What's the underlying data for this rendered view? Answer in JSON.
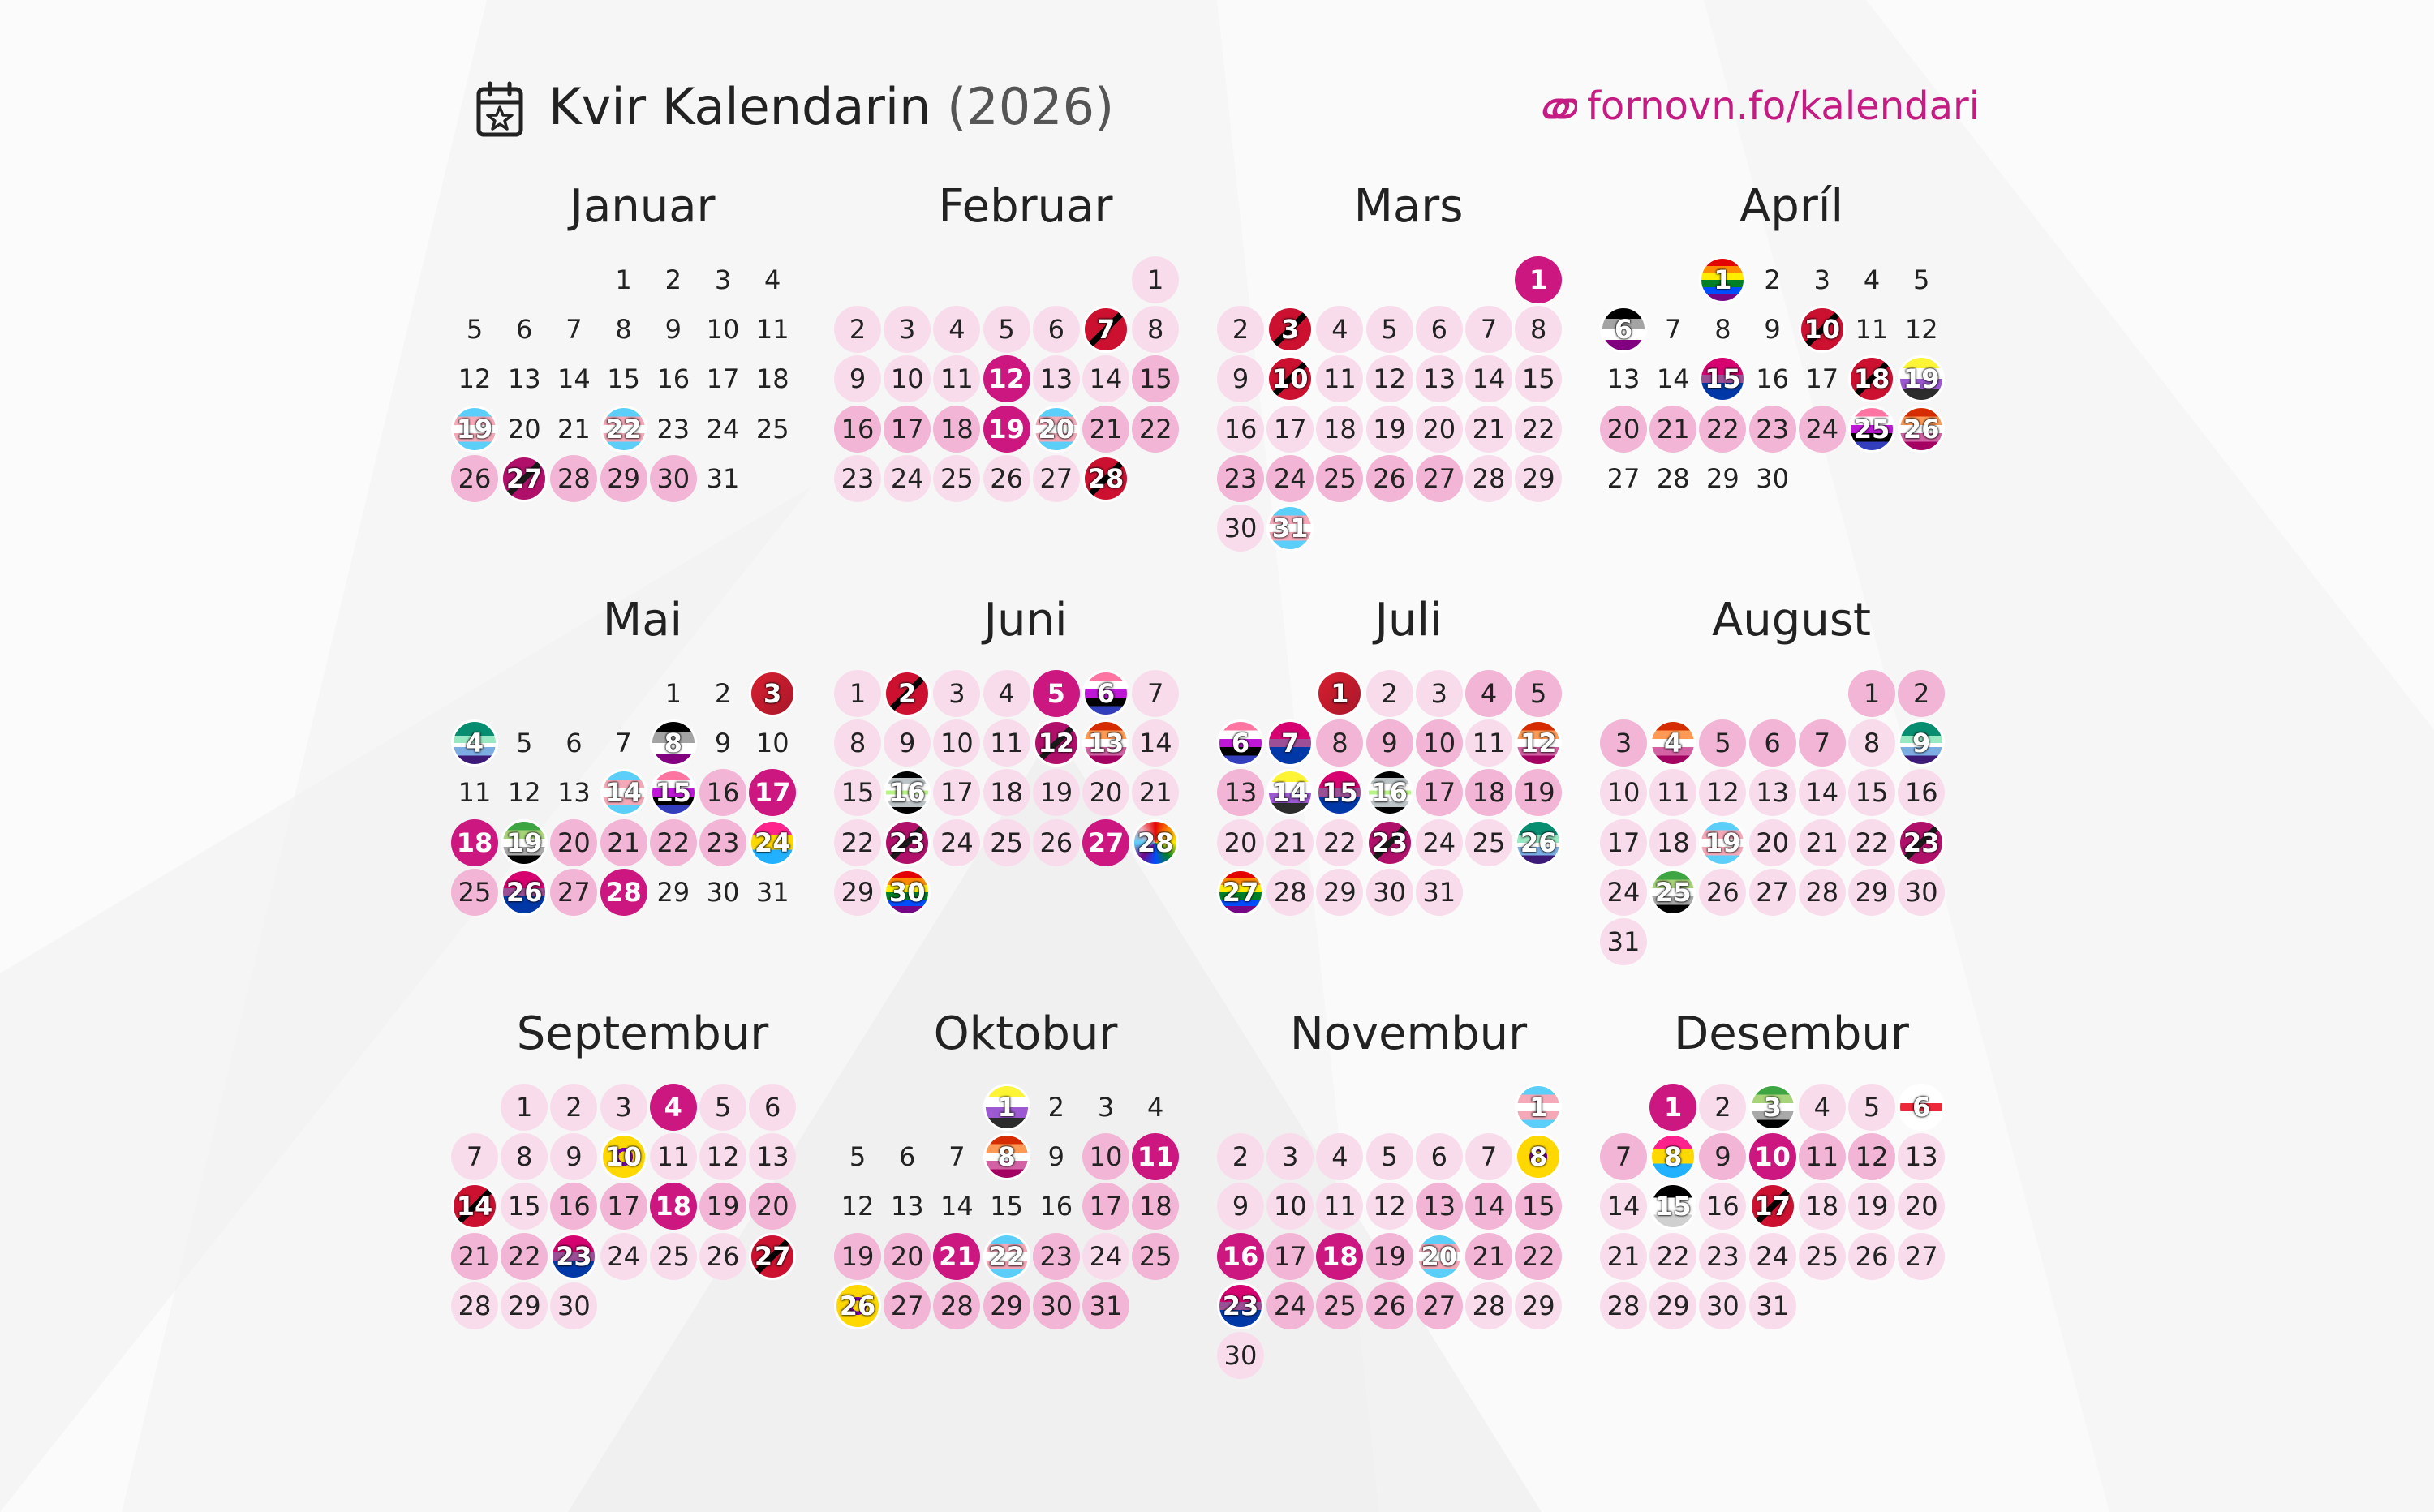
{
  "header": {
    "title": "Kvir Kalendarin",
    "year": "(2026)",
    "site": "fornovn.fo/kalendari",
    "icon": "calendar-star-icon",
    "link_icon": "link-icon"
  },
  "colors": {
    "accent": "#c41c82",
    "light": "#f9dcec",
    "medium": "#f2b5d6",
    "strong": "#cc1680"
  },
  "flags": {
    "rainbow": "linear-gradient(#e40303 0 17%,#ff8c00 17% 33%,#ffed00 33% 50%,#008026 50% 67%,#004dff 67% 83%,#750787 83%)",
    "trans": "linear-gradient(#5bcefa 0 20%,#f5a9b8 20% 40%,#ffffff 40% 60%,#f5a9b8 60% 80%,#5bcefa 80%)",
    "bi": "linear-gradient(#d60270 0 40%,#9b4f96 40% 60%,#0038a8 60%)",
    "pan": "linear-gradient(#ff218c 0 33%,#ffd800 33% 66%,#21b1ff 66%)",
    "ace": "linear-gradient(#000 0 25%,#a3a3a3 25% 50%,#fff 50% 75%,#800080 75%)",
    "aro": "linear-gradient(#3da542 0 20%,#a7d379 20% 40%,#fff 40% 60%,#a9a9a9 60% 80%,#000 80%)",
    "nonbinary": "linear-gradient(#fcf434 0 25%,#fff 25% 50%,#9c59d1 50% 75%,#2c2c2c 75%)",
    "lesbian": "linear-gradient(#d52d00 0 20%,#ff9a56 20% 40%,#fff 40% 60%,#d362a4 60% 80%,#a30262 80%)",
    "intersex": "radial-gradient(circle,#ffd800 0 18%,#7902aa 18% 30%,#ffd800 30%)",
    "genderfluid": "linear-gradient(#ff75a2 0 20%,#fff 20% 40%,#be18d6 40% 60%,#000 60% 80%,#333ebd 80%)",
    "demi": "linear-gradient(#000 0 30%,#fff 30% 70%,#d0d0d0 70%)",
    "agender": "linear-gradient(#000 0 15%,#bcc4c7 15% 30%,#fff 30% 45%,#b8f483 45% 55%,#fff 55% 70%,#bcc4c7 70% 85%,#000 85%)",
    "aids": "linear-gradient(135deg,#cc1130 0 45%,#000 45% 55%,#cc1130 55%)",
    "dark": "linear-gradient(135deg,#b0106a 0 45%,#1a1a1a 45% 55%,#b0106a 55%)",
    "red": "linear-gradient(135deg,#d81e2f,#a8182a)",
    "gay": "linear-gradient(#078d70 0 33%,#98e8c1 33% 50%,#fff 50% 60%,#7bade2 60% 80%,#3d1a78 80%)",
    "gray": "linear-gradient(#cfcfcf,#9a9a9a)",
    "faroe": "linear-gradient(#fff 0 40%,#ed2939 40% 60%,#fff 60%)",
    "pride_progress": "conic-gradient(#e40303,#ff8c00,#ffed00,#008026,#004dff,#750787,#5bcefa,#f5a9b8,#e40303)"
  },
  "months": [
    {
      "name": "Januar",
      "offset": 3,
      "days": 31,
      "styles": {
        "19": "trans",
        "22": "trans",
        "26": "l2",
        "27": "dark",
        "28": "l2",
        "29": "l2",
        "30": "l2"
      }
    },
    {
      "name": "Februar",
      "offset": 6,
      "days": 28,
      "styles": {
        "1": "l1",
        "2": "l1",
        "3": "l1",
        "4": "l1",
        "5": "l1",
        "6": "l1",
        "7": "aids",
        "8": "l1",
        "9": "l1",
        "10": "l1",
        "11": "l1",
        "12": "l3",
        "13": "l1",
        "14": "l1",
        "15": "l2",
        "16": "l2",
        "17": "l2",
        "18": "l2",
        "19": "l3",
        "20": "trans",
        "21": "l2",
        "22": "l2",
        "23": "l1",
        "24": "l1",
        "25": "l1",
        "26": "l1",
        "27": "l1",
        "28": "aids"
      }
    },
    {
      "name": "Mars",
      "offset": 6,
      "days": 31,
      "styles": {
        "1": "l3",
        "2": "l1",
        "3": "aids",
        "4": "l1",
        "5": "l1",
        "6": "l1",
        "7": "l1",
        "8": "l1",
        "9": "l1",
        "10": "aids",
        "11": "l1",
        "12": "l1",
        "13": "l1",
        "14": "l1",
        "15": "l1",
        "16": "l1",
        "17": "l1",
        "18": "l1",
        "19": "l1",
        "20": "l1",
        "21": "l1",
        "22": "l1",
        "23": "l2",
        "24": "l2",
        "25": "l2",
        "26": "l2",
        "27": "l2",
        "28": "l1",
        "29": "l1",
        "30": "l1",
        "31": "trans"
      }
    },
    {
      "name": "Apríl",
      "offset": 2,
      "days": 30,
      "styles": {
        "1": "rainbow",
        "6": "ace",
        "10": "aids",
        "15": "bi",
        "18": "aids",
        "19": "nonbinary",
        "20": "l2",
        "21": "l2",
        "22": "l2",
        "23": "l2",
        "24": "l2",
        "25": "genderfluid",
        "26": "lesbian"
      }
    },
    {
      "name": "Mai",
      "offset": 4,
      "days": 31,
      "styles": {
        "3": "red",
        "4": "gay",
        "8": "ace",
        "14": "trans",
        "15": "genderfluid",
        "16": "l2",
        "17": "l3",
        "18": "l3",
        "19": "aro",
        "20": "l2",
        "21": "l2",
        "22": "l2",
        "23": "l2",
        "24": "pan",
        "25": "l2",
        "26": "bi",
        "27": "l2",
        "28": "l3"
      }
    },
    {
      "name": "Juni",
      "offset": 0,
      "days": 30,
      "styles": {
        "1": "l1",
        "2": "aids",
        "3": "l1",
        "4": "l1",
        "5": "l3",
        "6": "genderfluid",
        "7": "l1",
        "8": "l1",
        "9": "l1",
        "10": "l1",
        "11": "l1",
        "12": "dark",
        "13": "lesbian",
        "14": "l1",
        "15": "l1",
        "16": "agender",
        "17": "l1",
        "18": "l1",
        "19": "l1",
        "20": "l1",
        "21": "l1",
        "22": "l1",
        "23": "dark",
        "24": "l1",
        "25": "l1",
        "26": "l1",
        "27": "l3",
        "28": "pride_progress",
        "29": "l1",
        "30": "rainbow"
      }
    },
    {
      "name": "Juli",
      "offset": 2,
      "days": 31,
      "styles": {
        "1": "red",
        "2": "l1",
        "3": "l1",
        "4": "l2",
        "5": "l2",
        "6": "genderfluid",
        "7": "bi",
        "8": "l2",
        "9": "l2",
        "10": "l2",
        "11": "l1",
        "12": "lesbian",
        "13": "l2",
        "14": "nonbinary",
        "15": "bi",
        "16": "agender",
        "17": "l2",
        "18": "l2",
        "19": "l2",
        "20": "l1",
        "21": "l1",
        "22": "l1",
        "23": "dark",
        "24": "l1",
        "25": "l1",
        "26": "gay",
        "27": "rainbow",
        "28": "l1",
        "29": "l1",
        "30": "l1",
        "31": "l1"
      }
    },
    {
      "name": "August",
      "offset": 5,
      "days": 31,
      "styles": {
        "1": "l2",
        "2": "l2",
        "3": "l2",
        "4": "lesbian",
        "5": "l2",
        "6": "l2",
        "7": "l2",
        "8": "l1",
        "9": "gay",
        "10": "l1",
        "11": "l1",
        "12": "l1",
        "13": "l1",
        "14": "l1",
        "15": "l1",
        "16": "l1",
        "17": "l1",
        "18": "l1",
        "19": "trans",
        "20": "l1",
        "21": "l1",
        "22": "l1",
        "23": "dark",
        "24": "l1",
        "25": "aro",
        "26": "l1",
        "27": "l1",
        "28": "l1",
        "29": "l1",
        "30": "l1",
        "31": "l1"
      }
    },
    {
      "name": "Septembur",
      "offset": 1,
      "days": 30,
      "styles": {
        "1": "l1",
        "2": "l1",
        "3": "l1",
        "4": "l3",
        "5": "l1",
        "6": "l1",
        "7": "l1",
        "8": "l1",
        "9": "l1",
        "10": "intersex",
        "11": "l1",
        "12": "l1",
        "13": "l1",
        "14": "aids",
        "15": "l1",
        "16": "l2",
        "17": "l2",
        "18": "l3",
        "19": "l2",
        "20": "l2",
        "21": "l2",
        "22": "l2",
        "23": "bi",
        "24": "l1",
        "25": "l1",
        "26": "l1",
        "27": "aids",
        "28": "l1",
        "29": "l1",
        "30": "l1"
      }
    },
    {
      "name": "Oktobur",
      "offset": 3,
      "days": 31,
      "styles": {
        "1": "nonbinary",
        "8": "lesbian",
        "10": "l2",
        "11": "l3",
        "17": "l2",
        "18": "l2",
        "19": "l2",
        "20": "l2",
        "21": "l3",
        "22": "trans",
        "23": "l2",
        "24": "l1",
        "25": "l2",
        "26": "intersex",
        "27": "l2",
        "28": "l2",
        "29": "l2",
        "30": "l2",
        "31": "l2"
      }
    },
    {
      "name": "Novembur",
      "offset": 6,
      "days": 30,
      "styles": {
        "1": "trans",
        "2": "l1",
        "3": "l1",
        "4": "l1",
        "5": "l1",
        "6": "l1",
        "7": "l1",
        "8": "intersex",
        "9": "l1",
        "10": "l1",
        "11": "l1",
        "12": "l1",
        "13": "l2",
        "14": "l2",
        "15": "l2",
        "16": "l3",
        "17": "l2",
        "18": "l3",
        "19": "l2",
        "20": "trans",
        "21": "l2",
        "22": "l2",
        "23": "bi",
        "24": "l2",
        "25": "l2",
        "26": "l2",
        "27": "l2",
        "28": "l1",
        "29": "l1",
        "30": "l1"
      }
    },
    {
      "name": "Desembur",
      "offset": 1,
      "days": 31,
      "styles": {
        "1": "l3",
        "2": "l1",
        "3": "aro",
        "4": "l1",
        "5": "l1",
        "6": "faroe",
        "7": "l2",
        "8": "pan",
        "9": "l2",
        "10": "l3",
        "11": "l2",
        "12": "l2",
        "13": "l1",
        "14": "l1",
        "15": "demi",
        "16": "l1",
        "17": "aids",
        "18": "l1",
        "19": "l1",
        "20": "l1",
        "21": "l1",
        "22": "l1",
        "23": "l1",
        "24": "l1",
        "25": "l1",
        "26": "l1",
        "27": "l1",
        "28": "l1",
        "29": "l1",
        "30": "l1",
        "31": "l1"
      }
    }
  ]
}
